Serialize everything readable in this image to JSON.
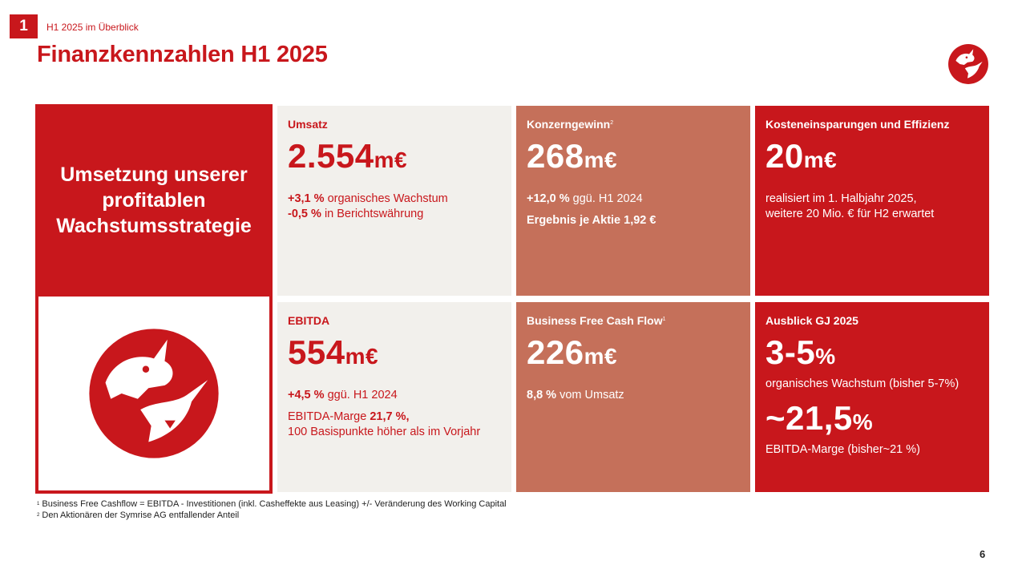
{
  "header": {
    "section_number": "1",
    "section_label": "H1 2025 im Überblick",
    "title": "Finanzkennzahlen H1 2025"
  },
  "left_panel": {
    "headline": "Umsetzung unserer profitablen Wachstumsstrategie"
  },
  "tiles": {
    "umsatz": {
      "title": "Umsatz",
      "value": "2.554",
      "unit": "m€",
      "line1_bold": "+3,1 %",
      "line1_text": " organisches Wachstum",
      "line2_bold": "-0,5 %",
      "line2_text": " in Berichtswährung"
    },
    "konzerngewinn": {
      "title": "Konzerngewinn",
      "title_sup": "2",
      "value": "268",
      "unit": "m€",
      "line1_bold": "+12,0 %",
      "line1_text": " ggü. H1 2024",
      "line2": "Ergebnis je Aktie 1,92 €"
    },
    "kosten": {
      "title": "Kosteneinsparungen und Effizienz",
      "value": "20",
      "unit": "m€",
      "line1": "realisiert im 1. Halbjahr 2025,",
      "line2": "weitere  20 Mio. € für H2 erwartet"
    },
    "ebitda": {
      "title": "EBITDA",
      "value": "554",
      "unit": "m€",
      "line1_bold": "+4,5 %",
      "line1_text": " ggü. H1 2024",
      "line2_text": "EBITDA-Marge ",
      "line2_bold": "21,7 %,",
      "line3": "100 Basispunkte höher als im Vorjahr"
    },
    "cashflow": {
      "title": "Business Free Cash Flow",
      "title_sup": "1",
      "value": "226",
      "unit": "m€",
      "line1_bold": "8,8 %",
      "line1_text": " vom Umsatz"
    },
    "ausblick": {
      "title": "Ausblick GJ 2025",
      "value1": "3-5",
      "unit1": "%",
      "line1": "organisches Wachstum (bisher 5-7%)",
      "value2": "~21,5",
      "unit2": "%",
      "line2": "EBITDA-Marge (bisher~21 %)"
    }
  },
  "footnotes": [
    {
      "sup": "1",
      "text": "Business Free Cashflow = EBITDA - Investitionen (inkl. Casheffekte aus Leasing) +/- Veränderung des Working Capital"
    },
    {
      "sup": "2",
      "text": "Den Aktionären der Symrise AG entfallender Anteil"
    }
  ],
  "page_number": "6",
  "colors": {
    "brand_red": "#c8171c",
    "salmon": "#c5705a",
    "light_bg": "#f2f0ec"
  }
}
